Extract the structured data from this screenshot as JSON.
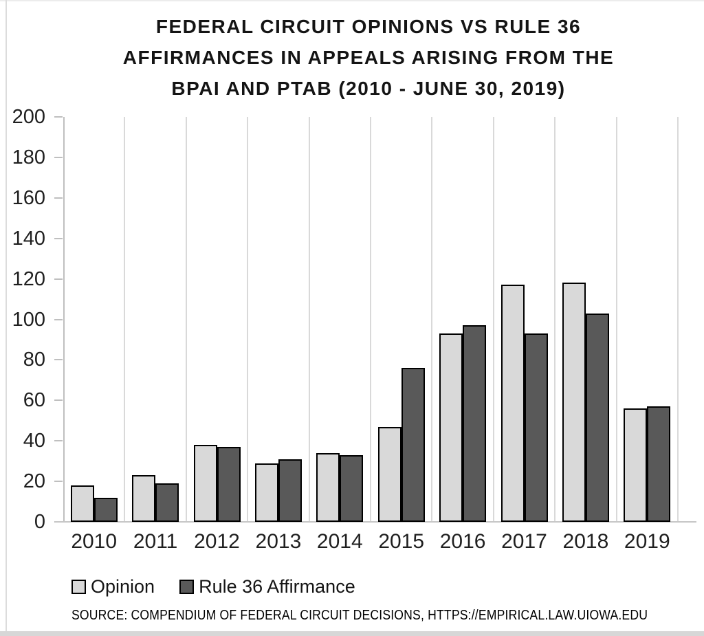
{
  "title": {
    "lines": [
      "FEDERAL CIRCUIT OPINIONS VS RULE 36",
      "AFFIRMANCES IN APPEALS ARISING FROM THE",
      "BPAI AND PTAB (2010 - JUNE 30, 2019)"
    ]
  },
  "source": {
    "text": "SOURCE: COMPENDIUM OF FEDERAL CIRCUIT DECISIONS, HTTPS://EMPIRICAL.LAW.UIOWA.EDU"
  },
  "chart_data": {
    "type": "bar",
    "title": "FEDERAL CIRCUIT OPINIONS VS RULE 36 AFFIRMANCES IN APPEALS ARISING FROM THE BPAI AND PTAB (2010 - JUNE 30, 2019)",
    "categories": [
      "2010",
      "2011",
      "2012",
      "2013",
      "2014",
      "2015",
      "2016",
      "2017",
      "2018",
      "2019"
    ],
    "series": [
      {
        "name": "Opinion",
        "color": "#d9d9d9",
        "values": [
          18,
          23,
          38,
          29,
          34,
          47,
          93,
          117,
          118,
          56
        ]
      },
      {
        "name": "Rule 36 Affirmance",
        "color": "#595959",
        "values": [
          12,
          19,
          37,
          31,
          33,
          76,
          97,
          93,
          103,
          57
        ]
      }
    ],
    "ylim": [
      0,
      200
    ],
    "ytick_step": 20,
    "xlabel": "",
    "ylabel": "",
    "grid": "vertical-only",
    "bar_outline": "#000000",
    "legend_position": "bottom-left"
  }
}
